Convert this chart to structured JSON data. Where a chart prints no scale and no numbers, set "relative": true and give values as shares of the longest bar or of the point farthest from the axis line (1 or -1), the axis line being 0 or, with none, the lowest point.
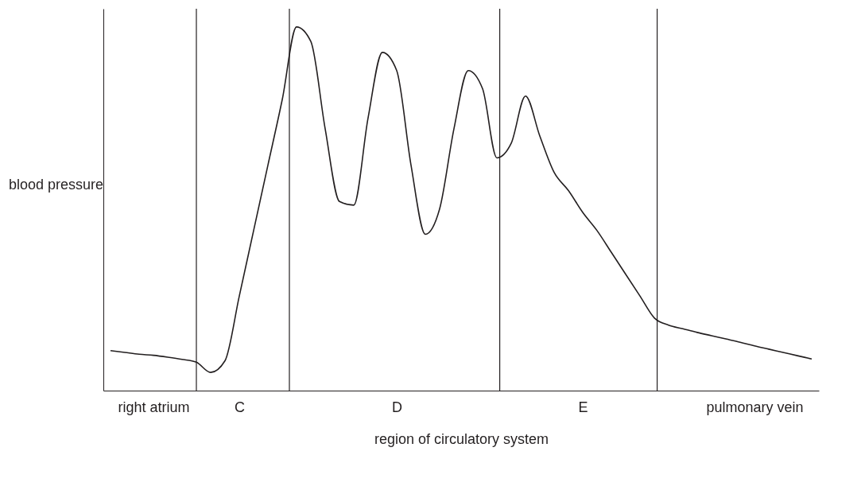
{
  "chart_data": {
    "type": "line",
    "relative": true,
    "xlabel": "region of circulatory system",
    "ylabel": "blood pressure",
    "categories": [
      null,
      null,
      null,
      "right atrium",
      null,
      null,
      null,
      null,
      null,
      "C",
      null,
      null,
      null,
      null,
      null,
      null,
      null,
      null,
      null,
      null,
      "D",
      null,
      null,
      null,
      null,
      null,
      null,
      null,
      null,
      null,
      null,
      null,
      null,
      "E",
      null,
      null,
      null,
      null,
      null,
      null,
      null,
      null,
      null,
      null,
      null,
      "pulmonary vein",
      null,
      null,
      null,
      null
    ],
    "series": [
      {
        "color": "#231f20",
        "values": [
          0.11,
          0.105,
          0.1,
          0.097,
          0.092,
          0.086,
          0.078,
          0.05,
          0.082,
          0.26,
          0.44,
          0.62,
          0.8,
          1.0,
          0.96,
          0.72,
          0.52,
          0.51,
          0.75,
          0.93,
          0.88,
          0.62,
          0.43,
          0.5,
          0.72,
          0.88,
          0.83,
          0.64,
          0.68,
          0.81,
          0.7,
          0.6,
          0.55,
          0.49,
          0.44,
          0.38,
          0.32,
          0.26,
          0.2,
          0.18,
          0.17,
          0.16,
          0.151,
          0.142,
          0.133,
          0.123,
          0.114,
          0.105,
          0.096,
          0.087
        ]
      }
    ],
    "marker": "none",
    "line_style": "solid"
  }
}
